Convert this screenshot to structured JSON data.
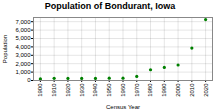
{
  "chart_data": {
    "type": "scatter",
    "title": "Population of Bondurant, Iowa",
    "xlabel": "Census Year",
    "ylabel": "Population",
    "x": [
      1900,
      1910,
      1920,
      1930,
      1940,
      1950,
      1960,
      1970,
      1980,
      1990,
      2000,
      2010,
      2020
    ],
    "values": [
      185,
      258,
      247,
      251,
      246,
      275,
      281,
      481,
      1282,
      1552,
      1846,
      3860,
      7248
    ],
    "color": "#008000",
    "xlim": [
      1895,
      2025
    ],
    "xticks": [
      1900,
      1910,
      1920,
      1930,
      1940,
      1950,
      1960,
      1970,
      1980,
      1990,
      2000,
      2010,
      2020
    ],
    "ylim": [
      0,
      7500
    ],
    "yticks": [
      0,
      {
        "value": 1000,
        "label": "1,000"
      },
      {
        "value": 2000,
        "label": "2,000"
      },
      {
        "value": 3000,
        "label": "3,000"
      },
      {
        "value": 4000,
        "label": "4,000"
      },
      {
        "value": 5000,
        "label": "5,000"
      },
      {
        "value": 6000,
        "label": "6,000"
      },
      {
        "value": 7000,
        "label": "7,000"
      }
    ],
    "grid": true
  }
}
